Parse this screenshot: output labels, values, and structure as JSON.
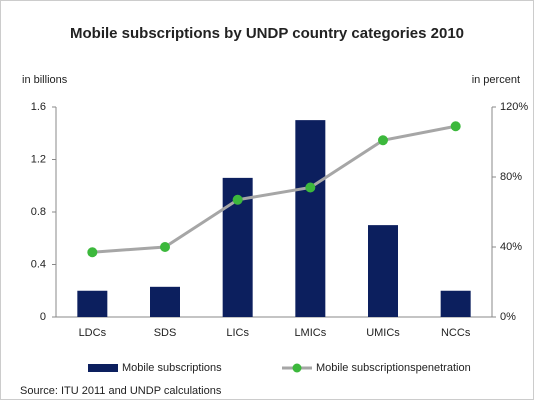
{
  "chart_data": {
    "type": "bar",
    "title": "Mobile subscriptions by UNDP country categories 2010",
    "y_label": "in billions",
    "y2_label": "in percent",
    "categories": [
      "LDCs",
      "SDS",
      "LICs",
      "LMICs",
      "UMICs",
      "NCCs"
    ],
    "series": [
      {
        "name": "Mobile subscriptions",
        "type": "bar",
        "color": "#0c1f5e",
        "values": [
          0.2,
          0.23,
          1.06,
          1.5,
          0.7,
          0.2
        ]
      },
      {
        "name": "Mobile subscriptionspenetration",
        "type": "line",
        "axis": "y2",
        "color": "#a6a6a6",
        "marker_color": "#3cb83c",
        "values": [
          37,
          40,
          67,
          74,
          101,
          109
        ]
      }
    ],
    "ylim": [
      0,
      1.6
    ],
    "yticks": [
      0,
      0.4,
      0.8,
      1.2,
      1.6
    ],
    "y2lim": [
      0,
      120
    ],
    "y2ticks": [
      {
        "value": 0,
        "label": "0%"
      },
      {
        "value": 40,
        "label": "40%"
      },
      {
        "value": 80,
        "label": "80%"
      },
      {
        "value": 120,
        "label": "120%"
      }
    ],
    "legend": "bottom",
    "source": "Source: ITU 2011 and UNDP calculations"
  }
}
